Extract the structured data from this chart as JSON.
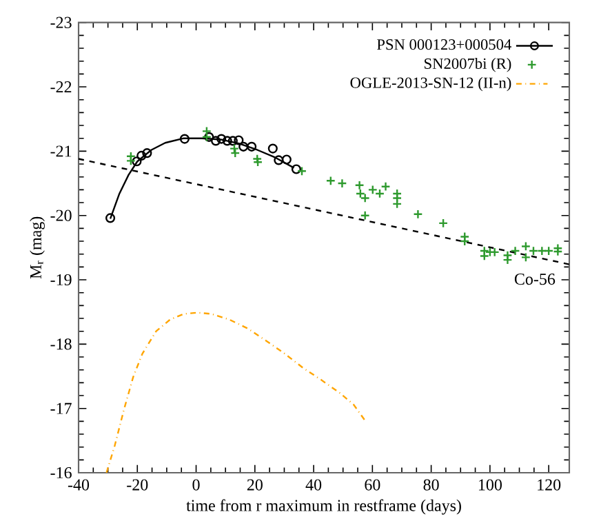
{
  "chart_data": {
    "type": "scatter",
    "xlabel": "time from r maximum in restframe (days)",
    "ylabel": "M$_{r}$ (mag)",
    "xlim": [
      -40,
      127
    ],
    "ylim": [
      -16,
      -23
    ],
    "xticks": [
      -40,
      -20,
      0,
      20,
      40,
      60,
      80,
      100,
      120
    ],
    "yticks": [
      -23,
      -22,
      -21,
      -20,
      -19,
      -18,
      -17,
      -16
    ],
    "legend": "top right",
    "grid": false,
    "annotations": [
      "Co-56"
    ],
    "series": [
      {
        "name": "PSN 000123+000504",
        "marker": "circle",
        "color": "#000000",
        "x": [
          -29.2,
          -20.2,
          -18.6,
          -16.7,
          -3.9,
          4.4,
          6.7,
          8.6,
          10.6,
          12.5,
          14.5,
          16.1,
          18.9,
          26.1,
          28.1,
          30.8,
          34.1
        ],
        "values": [
          -19.96,
          -20.84,
          -20.93,
          -20.97,
          -21.19,
          -21.22,
          -21.16,
          -21.19,
          -21.16,
          -21.16,
          -21.17,
          -21.07,
          -21.07,
          -21.04,
          -20.86,
          -20.87,
          -20.72
        ]
      },
      {
        "type": "line",
        "marker": "none",
        "line_style": "solid",
        "color": "#000000",
        "x": [
          -29.2,
          -26.1,
          -23,
          -20,
          -15.2,
          -10.5,
          -4.2,
          2,
          8.6,
          14.5,
          20.8,
          27,
          33.3
        ],
        "values": [
          -19.95,
          -20.34,
          -20.63,
          -20.84,
          -21.02,
          -21.13,
          -21.2,
          -21.2,
          -21.18,
          -21.12,
          -21.02,
          -20.9,
          -20.74
        ]
      },
      {
        "name": "SN2007bi (R)",
        "marker": "cross",
        "color": "#2e9a2e",
        "x": [
          -22.2,
          -22.2,
          3.6,
          3.6,
          13,
          13.3,
          20.8,
          21,
          36,
          45.8,
          49.7,
          55.6,
          55.9,
          57.5,
          57.5,
          60.1,
          62.5,
          64.5,
          68.4,
          68.4,
          68.4,
          75.5,
          84.1,
          91.4,
          91.4,
          98.1,
          98.1,
          100,
          101.6,
          106,
          106,
          108.6,
          112.2,
          112.2,
          114.8,
          117.7,
          120,
          123.1,
          123.1
        ],
        "values": [
          -20.92,
          -20.85,
          -21.31,
          -21.22,
          -21.04,
          -20.97,
          -20.88,
          -20.83,
          -20.69,
          -20.54,
          -20.5,
          -20.47,
          -20.34,
          -20.27,
          -20.0,
          -20.4,
          -20.34,
          -20.45,
          -20.34,
          -20.27,
          -20.18,
          -20.02,
          -19.88,
          -19.67,
          -19.6,
          -19.45,
          -19.37,
          -19.43,
          -19.43,
          -19.38,
          -19.31,
          -19.45,
          -19.52,
          -19.35,
          -19.45,
          -19.45,
          -19.45,
          -19.49,
          -19.44
        ]
      },
      {
        "name": "OGLE-2013-SN-12 (II-n)",
        "type": "line",
        "marker": "none",
        "line_style": "dashdot",
        "color": "#ffa500",
        "x": [
          -30.5,
          -27.7,
          -24.5,
          -21.4,
          -18.3,
          -13.6,
          -8.9,
          -4.2,
          0.5,
          5.2,
          11.4,
          17.7,
          23.9,
          30.2,
          36.4,
          42.7,
          48.9,
          53.6,
          57.5
        ],
        "values": [
          -16.0,
          -16.42,
          -16.99,
          -17.49,
          -17.85,
          -18.2,
          -18.38,
          -18.47,
          -18.49,
          -18.47,
          -18.38,
          -18.24,
          -18.05,
          -17.85,
          -17.63,
          -17.44,
          -17.24,
          -17.06,
          -16.81
        ]
      },
      {
        "type": "line",
        "marker": "none",
        "line_style": "dashed",
        "color": "#000000",
        "x": [
          -40,
          127
        ],
        "values": [
          -20.88,
          -19.24
        ]
      }
    ]
  }
}
